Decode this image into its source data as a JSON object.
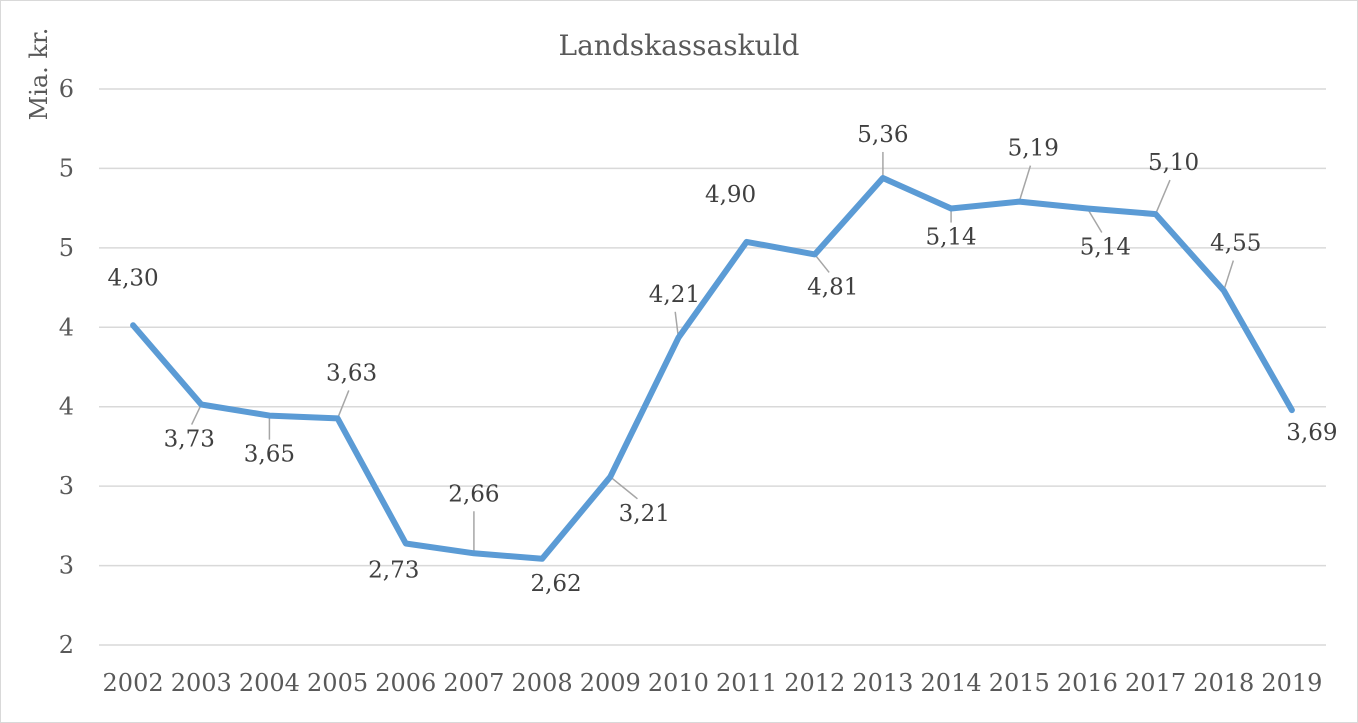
{
  "chart_data": {
    "type": "line",
    "title": "Landskassaskuld",
    "ylabel": "Mia. kr.",
    "xlabel": "",
    "categories": [
      "2002",
      "2003",
      "2004",
      "2005",
      "2006",
      "2007",
      "2008",
      "2009",
      "2010",
      "2011",
      "2012",
      "2013",
      "2014",
      "2015",
      "2016",
      "2017",
      "2018",
      "2019"
    ],
    "ytick_labels": [
      "2",
      "3",
      "3",
      "4",
      "4",
      "5",
      "5",
      "6"
    ],
    "ylim": [
      2,
      6
    ],
    "grid": true,
    "legend": "none",
    "series": [
      {
        "values": [
          4.3,
          3.73,
          3.65,
          3.63,
          2.73,
          2.66,
          2.62,
          3.21,
          4.21,
          4.9,
          4.81,
          5.36,
          5.14,
          5.19,
          5.14,
          5.1,
          4.55,
          3.69
        ],
        "labels": [
          "4,30",
          "3,73",
          "3,65",
          "3,63",
          "2,73",
          "2,66",
          "2,62",
          "3,21",
          "4,21",
          "4,90",
          "4,81",
          "5,36",
          "5,14",
          "5,19",
          "5,14",
          "5,10",
          "4,55",
          "3,69"
        ],
        "color": "#5b9bd5"
      }
    ]
  }
}
